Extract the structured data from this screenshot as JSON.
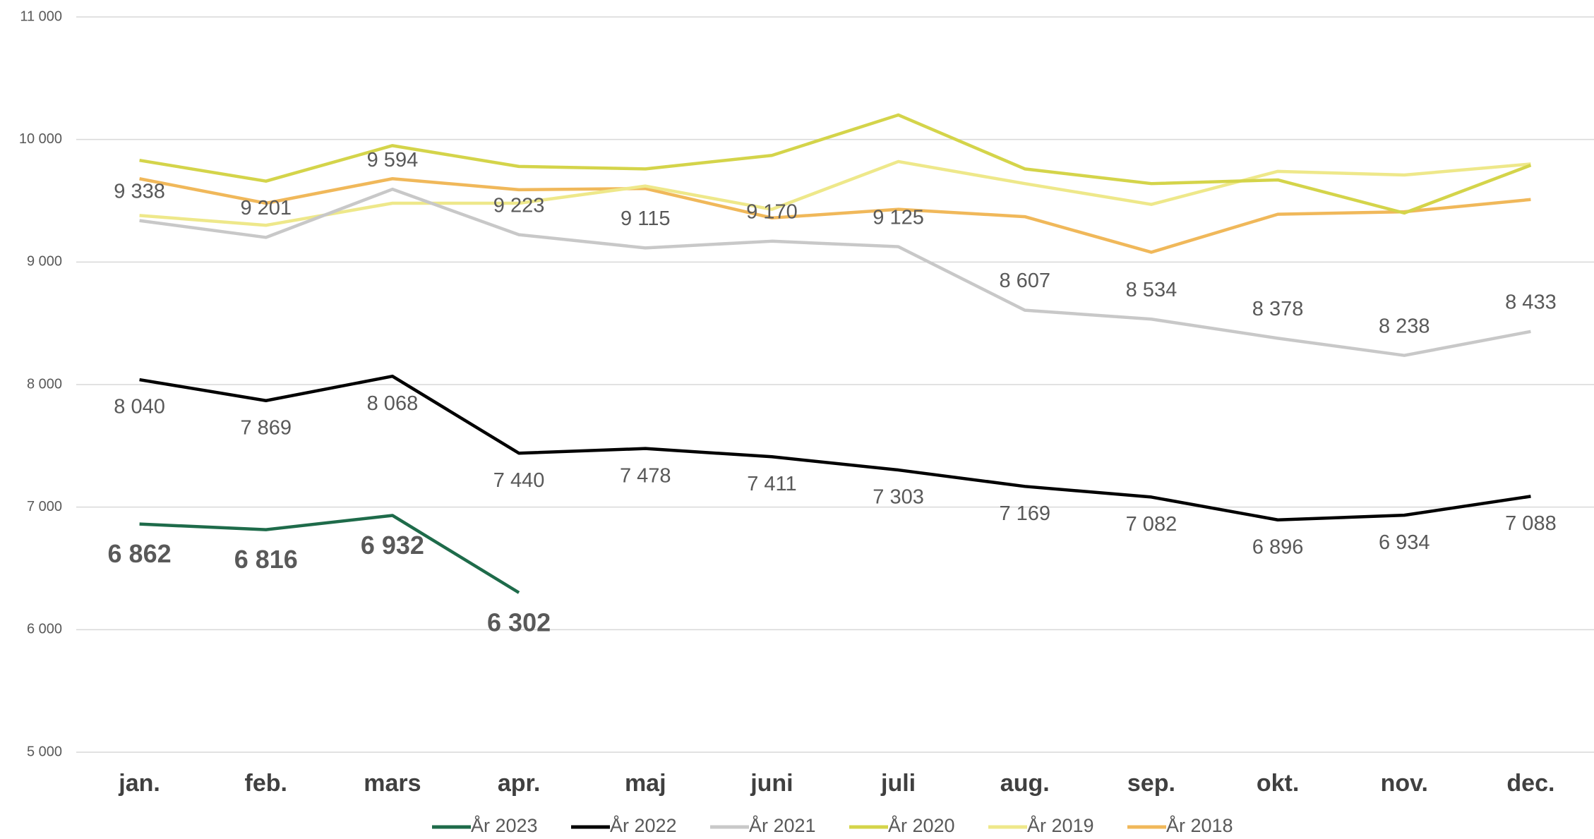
{
  "chart_data": {
    "type": "line",
    "categories": [
      "jan.",
      "feb.",
      "mars",
      "apr.",
      "maj",
      "juni",
      "juli",
      "aug.",
      "sep.",
      "okt.",
      "nov.",
      "dec."
    ],
    "ylim": [
      5000,
      11000
    ],
    "yticks": [
      {
        "value": 5000,
        "label": "5 000"
      },
      {
        "value": 6000,
        "label": "6 000"
      },
      {
        "value": 7000,
        "label": "7 000"
      },
      {
        "value": 8000,
        "label": "8 000"
      },
      {
        "value": 9000,
        "label": "9 000"
      },
      {
        "value": 10000,
        "label": "10 000"
      },
      {
        "value": 11000,
        "label": "11 000"
      }
    ],
    "grid": true,
    "legend": "bottom",
    "series": [
      {
        "name": "År 2023",
        "color": "#1e6b4a",
        "values": [
          6862,
          6816,
          6932,
          6302,
          null,
          null,
          null,
          null,
          null,
          null,
          null,
          null
        ],
        "value_labels": [
          "6 862",
          "6 816",
          "6 932",
          "6 302",
          null,
          null,
          null,
          null,
          null,
          null,
          null,
          null
        ],
        "value_label_colors": [
          "#000000",
          "#000000",
          "#000000",
          "#d00000",
          null,
          null,
          null,
          null,
          null,
          null,
          null,
          null
        ]
      },
      {
        "name": "År 2022",
        "color": "#000000",
        "values": [
          8040,
          7869,
          8068,
          7440,
          7478,
          7411,
          7303,
          7169,
          7082,
          6896,
          6934,
          7088
        ],
        "value_labels": [
          "8 040",
          "7 869",
          "8 068",
          "7 440",
          "7 478",
          "7 411",
          "7 303",
          "7 169",
          "7 082",
          "6 896",
          "6 934",
          "7 088"
        ]
      },
      {
        "name": "År 2021",
        "color": "#c8c8c8",
        "values": [
          9338,
          9201,
          9594,
          9223,
          9115,
          9170,
          9125,
          8607,
          8534,
          8378,
          8238,
          8433
        ],
        "value_labels": [
          "9 338",
          "9 201",
          "9 594",
          "9 223",
          "9 115",
          "9 170",
          "9 125",
          "8 607",
          "8 534",
          "8 378",
          "8 238",
          "8 433"
        ]
      },
      {
        "name": "År 2020",
        "color": "#d4d44a",
        "values": [
          9830,
          9660,
          9950,
          9780,
          9760,
          9870,
          10200,
          9760,
          9640,
          9670,
          9400,
          9790
        ]
      },
      {
        "name": "År 2019",
        "color": "#eee88a",
        "values": [
          9380,
          9300,
          9480,
          9480,
          9620,
          9430,
          9820,
          9640,
          9470,
          9740,
          9710,
          9800
        ]
      },
      {
        "name": "År 2018",
        "color": "#f0b85a",
        "values": [
          9680,
          9480,
          9680,
          9590,
          9600,
          9360,
          9430,
          9370,
          9080,
          9390,
          9410,
          9510
        ]
      }
    ]
  }
}
